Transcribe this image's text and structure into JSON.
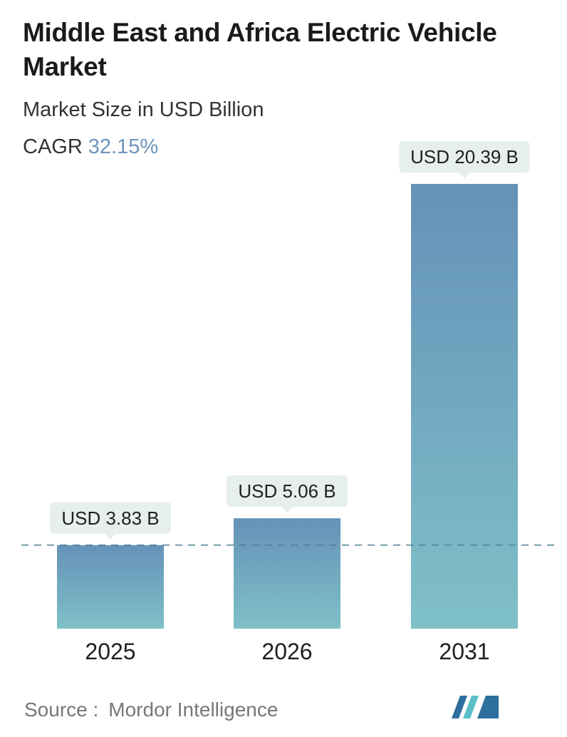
{
  "header": {
    "title": "Middle East and Africa Electric Vehicle Market",
    "subtitle": "Market Size in USD Billion",
    "cagr_label": "CAGR",
    "cagr_value": "32.15%"
  },
  "colors": {
    "bar_top": "#6592b8",
    "bar_bottom": "#7fc0c8",
    "label_bg": "#e6eeee",
    "baseline": "#4e7f95",
    "cagr_accent": "#6c94bd",
    "logo_dark": "#2d6f9e",
    "logo_light": "#5bbfc8"
  },
  "chart_data": {
    "type": "bar",
    "title": "Middle East and Africa Electric Vehicle Market",
    "ylabel": "Market Size in USD Billion",
    "categories": [
      "2025",
      "2026",
      "2031"
    ],
    "values": [
      3.83,
      5.06,
      20.39
    ],
    "value_labels": [
      "USD 3.83 B",
      "USD 5.06 B",
      "USD 20.39 B"
    ],
    "reference_line": 3.83,
    "grid": false
  },
  "footer": {
    "source_label": "Source :",
    "source_name": "Mordor Intelligence",
    "logo_name": "mordor-intelligence-logo"
  }
}
